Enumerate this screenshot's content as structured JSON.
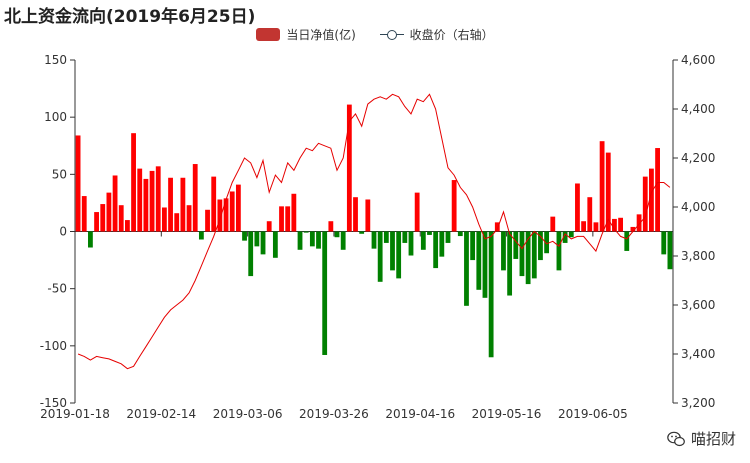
{
  "title": "北上资金流向(2019年6月25日)",
  "legend": {
    "bar_label": "当日净值(亿)",
    "line_label": "收盘价（右轴）"
  },
  "watermark": {
    "text": "喵招财",
    "icon": "wechat-icon"
  },
  "colors": {
    "positive": "#ff0000",
    "negative": "#008000",
    "line": "#e60000",
    "legend_bar": "#c23531",
    "axis": "#333333"
  },
  "chart_data": {
    "type": "bar",
    "left_axis": {
      "min": -150,
      "max": 150,
      "ticks": [
        150,
        100,
        50,
        0,
        -50,
        -100,
        -150
      ]
    },
    "right_axis": {
      "min": 3200,
      "max": 4600,
      "ticks": [
        "4,600",
        "4,400",
        "4,200",
        "4,000",
        "3,800",
        "3,600",
        "3,400",
        "3,200"
      ]
    },
    "x_tick_labels": [
      "2019-01-18",
      "2019-02-14",
      "2019-03-06",
      "2019-03-26",
      "2019-04-16",
      "2019-05-16",
      "2019-06-05"
    ],
    "x_tick_positions": [
      0,
      14,
      28,
      42,
      56,
      70,
      84
    ],
    "series": [
      {
        "name": "当日净值(亿)",
        "type": "bar",
        "values": [
          84,
          31,
          -14,
          17,
          24,
          34,
          49,
          23,
          10,
          86,
          55,
          46,
          53,
          57,
          21,
          47,
          16,
          47,
          23,
          59,
          -7,
          19,
          48,
          28,
          29,
          35,
          41,
          -8,
          -39,
          -13,
          -20,
          9,
          -23,
          22,
          22,
          33,
          -16,
          -1,
          -13,
          -15,
          -108,
          9,
          -5,
          -16,
          111,
          30,
          -2,
          28,
          -15,
          -44,
          -10,
          -34,
          -41,
          -10,
          -21,
          34,
          -16,
          -3,
          -32,
          -22,
          -10,
          45,
          -4,
          -65,
          -25,
          -51,
          -58,
          -110,
          8,
          -34,
          -56,
          -24,
          -39,
          -46,
          -41,
          -25,
          -19,
          13,
          -34,
          -10,
          -5,
          42,
          9,
          30,
          8,
          79,
          69,
          11,
          12,
          -17,
          4,
          15,
          48,
          55,
          73,
          -20,
          -33
        ]
      },
      {
        "name": "收盘价（右轴）",
        "type": "line",
        "values": [
          3400,
          3390,
          3375,
          3390,
          3385,
          3380,
          3370,
          3360,
          3340,
          3350,
          3390,
          3430,
          3470,
          3510,
          3550,
          3580,
          3600,
          3620,
          3650,
          3700,
          3760,
          3820,
          3880,
          3950,
          4030,
          4100,
          4150,
          4200,
          4180,
          4120,
          4190,
          4060,
          4130,
          4100,
          4180,
          4150,
          4200,
          4240,
          4230,
          4260,
          4250,
          4240,
          4150,
          4200,
          4350,
          4380,
          4330,
          4420,
          4440,
          4450,
          4440,
          4460,
          4450,
          4410,
          4380,
          4440,
          4430,
          4460,
          4400,
          4280,
          4160,
          4130,
          4080,
          4050,
          4000,
          3930,
          3870,
          3880,
          3910,
          3980,
          3890,
          3860,
          3830,
          3870,
          3900,
          3880,
          3850,
          3860,
          3840,
          3890,
          3870,
          3880,
          3880,
          3850,
          3820,
          3890,
          3950,
          3910,
          3880,
          3870,
          3900,
          3930,
          3960,
          4060,
          4100,
          4100,
          4080
        ]
      }
    ]
  }
}
